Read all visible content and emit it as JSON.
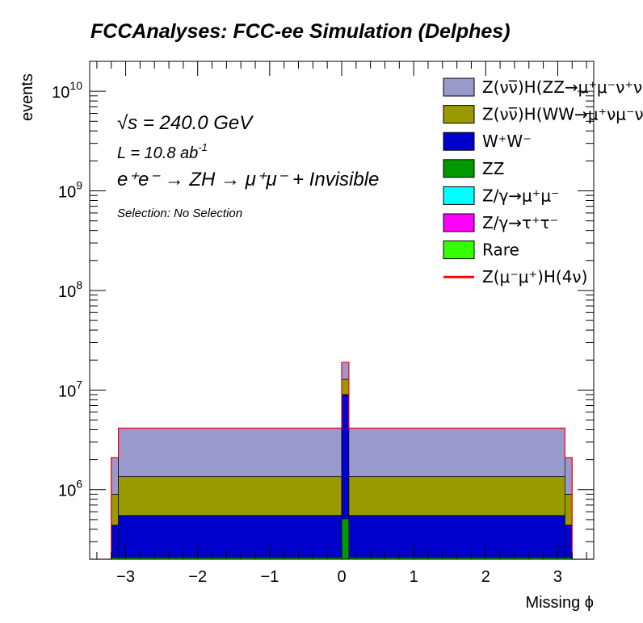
{
  "chart_data": {
    "type": "bar",
    "stacked": true,
    "title": "FCCAnalyses: FCC-ee Simulation (Delphes)",
    "xlabel": "Missing ϕ",
    "ylabel": "events",
    "xlim": [
      -3.5,
      3.5
    ],
    "ylim": [
      200000,
      20000000000
    ],
    "log_y": true,
    "x_ticks": [
      {
        "v": -3,
        "label": "−3"
      },
      {
        "v": -2,
        "label": "−2"
      },
      {
        "v": -1,
        "label": "−1"
      },
      {
        "v": 0,
        "label": "0"
      },
      {
        "v": 1,
        "label": "1"
      },
      {
        "v": 2,
        "label": "2"
      },
      {
        "v": 3,
        "label": "3"
      }
    ],
    "y_ticks": [
      {
        "v": 1000000,
        "base": "10",
        "exp": "6"
      },
      {
        "v": 10000000,
        "base": "10",
        "exp": "7"
      },
      {
        "v": 100000000,
        "base": "10",
        "exp": "8"
      },
      {
        "v": 1000000000,
        "base": "10",
        "exp": "9"
      },
      {
        "v": 10000000000,
        "base": "10",
        "exp": "10"
      }
    ],
    "bins": [
      {
        "x0": -3.5,
        "x1": -3.2,
        "vals": [
          0,
          0,
          0,
          0,
          0,
          0,
          0
        ]
      },
      {
        "x0": -3.2,
        "x1": -3.1,
        "vals": [
          210000,
          0,
          0,
          0,
          230000,
          460000,
          1200000
        ]
      },
      {
        "x0": -3.1,
        "x1": 0.0,
        "vals": [
          210000,
          0,
          0,
          0,
          340000,
          800000,
          2800000
        ]
      },
      {
        "x0": 0.0,
        "x1": 0.1,
        "vals": [
          510000,
          0,
          0,
          0,
          8500000,
          3800000,
          6200000
        ]
      },
      {
        "x0": 0.1,
        "x1": 3.1,
        "vals": [
          210000,
          0,
          0,
          0,
          340000,
          800000,
          2800000
        ]
      },
      {
        "x0": 3.1,
        "x1": 3.2,
        "vals": [
          210000,
          0,
          0,
          0,
          230000,
          460000,
          1200000
        ]
      },
      {
        "x0": 3.2,
        "x1": 3.5,
        "vals": [
          0,
          0,
          0,
          0,
          0,
          0,
          0
        ]
      }
    ],
    "stack_order": [
      "ZZ",
      "Rare",
      "Z/γ→τ⁺τ⁻",
      "Z/γ→μ⁺μ⁻",
      "W⁺W⁻",
      "Z(νν̅)H(WW→μ⁺νμ⁻ν)",
      "Z(νν̅)H(ZZ→μ⁺μ⁻νν)"
    ],
    "stack_colors": [
      "#009900",
      "#33ff00",
      "#ff00ff",
      "#00ffff",
      "#0000cc",
      "#999900",
      "#9999cc"
    ],
    "signal": {
      "name": "Z(μ⁻μ⁺)H(4ν)",
      "color": "#ff0000"
    },
    "legend": [
      {
        "label": "Z(νν̅)H(ZZ→μ⁺μ⁻ν⁺ν",
        "color": "#9999cc",
        "kind": "box"
      },
      {
        "label": "Z(νν̅)H(WW→μ⁺νμ⁻ν",
        "color": "#999900",
        "kind": "box"
      },
      {
        "label": "W⁺W⁻",
        "color": "#0000cc",
        "kind": "box"
      },
      {
        "label": "ZZ",
        "color": "#009900",
        "kind": "box"
      },
      {
        "label": "Z/γ→μ⁺μ⁻",
        "color": "#00ffff",
        "kind": "box"
      },
      {
        "label": "Z/γ→τ⁺τ⁻",
        "color": "#ff00ff",
        "kind": "box"
      },
      {
        "label": "Rare",
        "color": "#33ff00",
        "kind": "box"
      },
      {
        "label": "Z(μ⁻μ⁺)H(4ν)",
        "color": "#ff0000",
        "kind": "line"
      }
    ],
    "legend_position": "top-right",
    "annotations": {
      "energy": "√s = 240.0 GeV",
      "lumi_text": "L = 10.8 ab",
      "lumi_exp": "-1",
      "process": "e⁺e⁻ → ZH → μ⁺μ⁻ + Invisible",
      "selection": "Selection: No Selection"
    }
  }
}
